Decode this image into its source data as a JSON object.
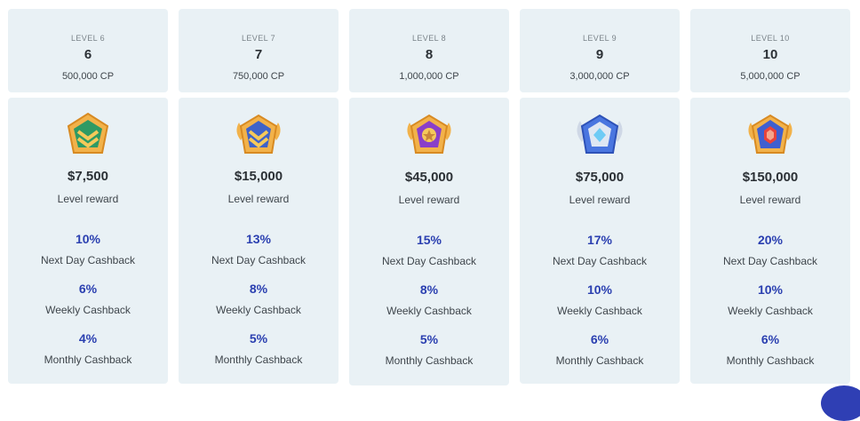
{
  "levels": [
    {
      "label": "LEVEL 6",
      "number": "6",
      "cp": "500,000 CP",
      "reward": "$7,500",
      "reward_label": "Level reward",
      "cashback": [
        {
          "pct": "10%",
          "label": "Next Day Cashback"
        },
        {
          "pct": "6%",
          "label": "Weekly Cashback"
        },
        {
          "pct": "4%",
          "label": "Monthly Cashback"
        }
      ],
      "badge": "green-chevron-pentagon-badge-icon"
    },
    {
      "label": "LEVEL 7",
      "number": "7",
      "cp": "750,000 CP",
      "reward": "$15,000",
      "reward_label": "Level reward",
      "cashback": [
        {
          "pct": "13%",
          "label": "Next Day Cashback"
        },
        {
          "pct": "8%",
          "label": "Weekly Cashback"
        },
        {
          "pct": "5%",
          "label": "Monthly Cashback"
        }
      ],
      "badge": "blue-chevron-winged-badge-icon"
    },
    {
      "label": "LEVEL 8",
      "number": "8",
      "cp": "1,000,000 CP",
      "reward": "$45,000",
      "reward_label": "Level reward",
      "cashback": [
        {
          "pct": "15%",
          "label": "Next Day Cashback"
        },
        {
          "pct": "8%",
          "label": "Weekly Cashback"
        },
        {
          "pct": "5%",
          "label": "Monthly Cashback"
        }
      ],
      "badge": "purple-star-winged-badge-icon"
    },
    {
      "label": "LEVEL 9",
      "number": "9",
      "cp": "3,000,000 CP",
      "reward": "$75,000",
      "reward_label": "Level reward",
      "cashback": [
        {
          "pct": "17%",
          "label": "Next Day Cashback"
        },
        {
          "pct": "10%",
          "label": "Weekly Cashback"
        },
        {
          "pct": "6%",
          "label": "Monthly Cashback"
        }
      ],
      "badge": "silver-diamond-winged-badge-icon"
    },
    {
      "label": "LEVEL 10",
      "number": "10",
      "cp": "5,000,000 CP",
      "reward": "$150,000",
      "reward_label": "Level reward",
      "cashback": [
        {
          "pct": "20%",
          "label": "Next Day Cashback"
        },
        {
          "pct": "10%",
          "label": "Weekly Cashback"
        },
        {
          "pct": "6%",
          "label": "Monthly Cashback"
        }
      ],
      "badge": "gold-ruby-winged-badge-icon"
    }
  ],
  "colors": {
    "card": "#e9f1f5",
    "accent": "#2a3fb0",
    "text": "#333a40"
  }
}
